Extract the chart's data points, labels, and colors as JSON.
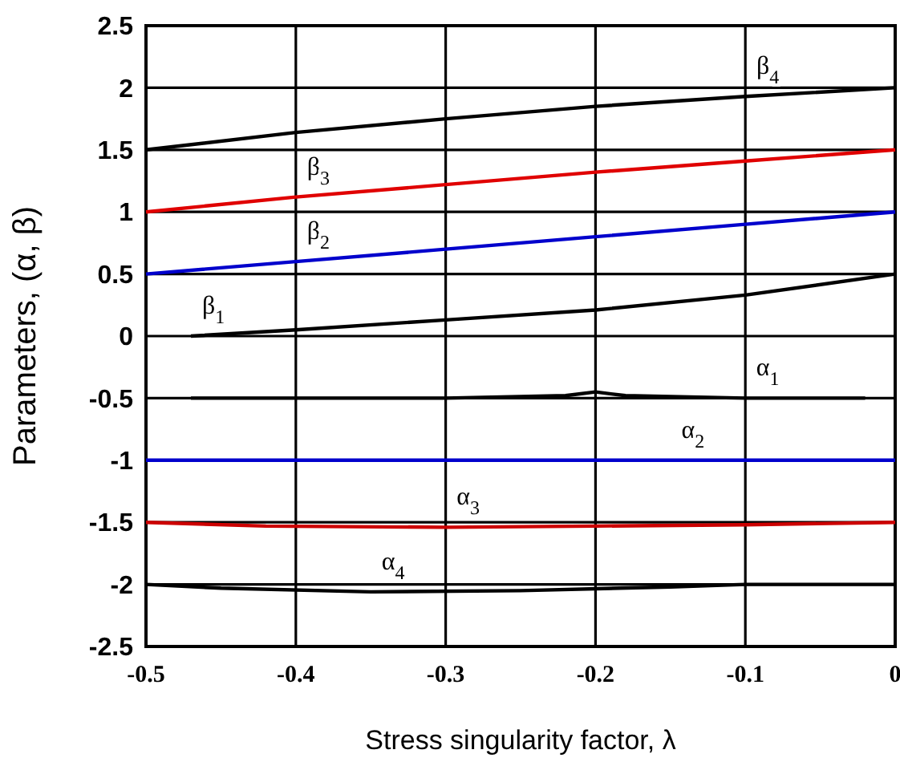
{
  "chart_data": {
    "type": "line",
    "xlabel": "Stress singularity factor, λ",
    "ylabel": "Parameters, (α, β)",
    "xlim": [
      -0.5,
      0
    ],
    "xticks": [
      -0.5,
      -0.4,
      -0.3,
      -0.2,
      -0.1,
      0
    ],
    "ylim": [
      -2.5,
      2.5
    ],
    "yticks": [
      -2.5,
      -2,
      -1.5,
      -1,
      -0.5,
      0,
      0.5,
      1,
      1.5,
      2,
      2.5
    ],
    "grid": true,
    "marker": "none",
    "line_style": "solid",
    "series": [
      {
        "color": "#000000",
        "x": [
          -0.5,
          -0.4,
          -0.3,
          -0.2,
          -0.1,
          0
        ],
        "values": [
          1.5,
          1.64,
          1.75,
          1.85,
          1.93,
          2.0
        ]
      },
      {
        "color": "#e00000",
        "x": [
          -0.5,
          -0.4,
          -0.3,
          -0.2,
          -0.1,
          0
        ],
        "values": [
          1.0,
          1.12,
          1.22,
          1.32,
          1.41,
          1.5
        ]
      },
      {
        "color": "#0000cc",
        "x": [
          -0.5,
          -0.4,
          -0.3,
          -0.2,
          -0.1,
          0
        ],
        "values": [
          0.5,
          0.6,
          0.7,
          0.8,
          0.9,
          1.0
        ]
      },
      {
        "color": "#000000",
        "x": [
          -0.47,
          -0.4,
          -0.3,
          -0.2,
          -0.1,
          0
        ],
        "values": [
          0,
          0.05,
          0.13,
          0.21,
          0.33,
          0.5
        ]
      },
      {
        "color": "#000000",
        "x": [
          -0.47,
          -0.4,
          -0.3,
          -0.22,
          -0.2,
          -0.18,
          -0.1,
          -0.02
        ],
        "values": [
          -0.5,
          -0.5,
          -0.5,
          -0.48,
          -0.45,
          -0.48,
          -0.5,
          -0.5
        ]
      },
      {
        "color": "#0000cc",
        "x": [
          -0.5,
          -0.15,
          0
        ],
        "values": [
          -1,
          -1,
          -1
        ]
      },
      {
        "color": "#cc0000",
        "x": [
          -0.5,
          -0.42,
          -0.3,
          -0.2,
          -0.1,
          0
        ],
        "values": [
          -1.5,
          -1.53,
          -1.54,
          -1.53,
          -1.52,
          -1.5
        ]
      },
      {
        "color": "#000000",
        "x": [
          -0.5,
          -0.45,
          -0.35,
          -0.25,
          -0.15,
          -0.1,
          0
        ],
        "values": [
          -2,
          -2.03,
          -2.06,
          -2.05,
          -2.02,
          -2.0,
          -2.0
        ]
      }
    ],
    "annotations": [
      {
        "text": "β$_{4}$",
        "x": -0.1,
        "y": 1.93
      },
      {
        "text": "β$_{3}$",
        "x": -0.4,
        "y": 1.12
      },
      {
        "text": "β$_{2}$",
        "x": -0.4,
        "y": 0.6
      },
      {
        "text": "β$_{1}$",
        "x": -0.47,
        "y": 0
      },
      {
        "text": "α$_{1}$",
        "x": -0.1,
        "y": -0.5
      },
      {
        "text": "α$_{2}$",
        "x": -0.15,
        "y": -1
      },
      {
        "text": "α$_{3}$",
        "x": -0.3,
        "y": -1.54
      },
      {
        "text": "α$_{4}$",
        "x": -0.35,
        "y": -2.06
      }
    ]
  }
}
